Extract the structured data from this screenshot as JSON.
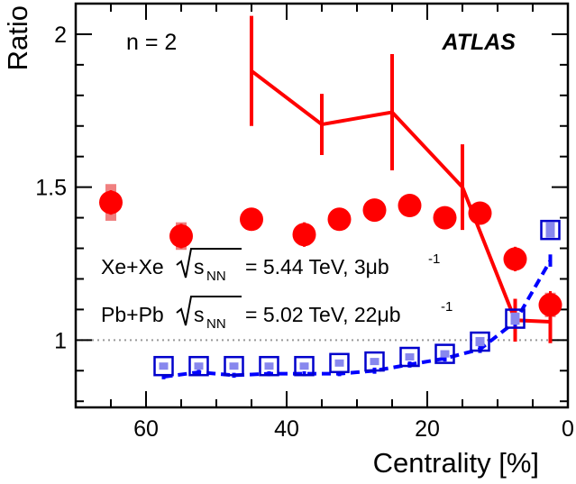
{
  "chart_data": {
    "type": "scatter",
    "title": "",
    "xlabel": "Centrality [%]",
    "ylabel": "Ratio",
    "xlim": [
      0,
      70
    ],
    "x_reversed": true,
    "ylim": [
      0.78,
      2.1
    ],
    "x_ticks": [
      60,
      40,
      20,
      0
    ],
    "y_ticks": [
      1,
      1.5,
      2
    ],
    "reference_line": 1,
    "annotations": {
      "n_label": "n = 2",
      "experiment": "ATLAS",
      "xexe_label": {
        "system": "Xe+Xe",
        "sqrt": "s",
        "sub": "NN",
        "rest": "= 5.44 TeV, 3μb",
        "sup": "-1"
      },
      "pbpb_label": {
        "system": "Pb+Pb",
        "sqrt": "s",
        "sub": "NN",
        "rest": "= 5.02 TeV, 22μb",
        "sup": "-1"
      }
    },
    "series": [
      {
        "name": "red-circles",
        "color": "#ff0000",
        "x": [
          65,
          55,
          45,
          37.5,
          32.5,
          27.5,
          22.5,
          17.5,
          12.5,
          7.5,
          2.5
        ],
        "y": [
          1.45,
          1.34,
          1.395,
          1.345,
          1.395,
          1.425,
          1.44,
          1.4,
          1.415,
          1.265,
          1.115
        ],
        "sys": [
          0.06,
          0.045,
          0.02,
          0.035,
          0.025,
          0.02,
          0.025,
          0.03,
          0.02,
          0.03,
          0.04
        ],
        "stat": [
          0.04,
          0.04,
          0.02,
          0.04,
          0.03,
          0.03,
          0.035,
          0.035,
          0.03,
          0.04,
          0.045
        ]
      },
      {
        "name": "red-line",
        "color": "#ff0000",
        "x": [
          45,
          35,
          25,
          15,
          7.5,
          2.5
        ],
        "y": [
          1.88,
          1.705,
          1.745,
          1.5,
          1.065,
          1.06
        ],
        "err": [
          0.18,
          0.1,
          0.19,
          0.14,
          0.07,
          0.07
        ]
      },
      {
        "name": "blue-squares",
        "color": "#0000cc",
        "x": [
          57.5,
          52.5,
          47.5,
          42.5,
          37.5,
          32.5,
          27.5,
          22.5,
          17.5,
          12.5,
          7.5,
          2.5
        ],
        "y": [
          0.915,
          0.915,
          0.915,
          0.915,
          0.915,
          0.925,
          0.93,
          0.945,
          0.955,
          0.995,
          1.07,
          1.36
        ],
        "sys": [
          0.008,
          0.008,
          0.008,
          0.008,
          0.008,
          0.01,
          0.01,
          0.01,
          0.012,
          0.015,
          0.02,
          0.025
        ]
      },
      {
        "name": "blue-dashed",
        "color": "#0000ff",
        "x": [
          57.5,
          52.5,
          47.5,
          42.5,
          37.5,
          32.5,
          27.5,
          22.5,
          17.5,
          12.5,
          7.5,
          2.5
        ],
        "y": [
          0.88,
          0.895,
          0.885,
          0.89,
          0.89,
          0.89,
          0.9,
          0.92,
          0.94,
          0.97,
          1.06,
          1.26
        ],
        "err": [
          0.008,
          0.008,
          0.008,
          0.008,
          0.008,
          0.008,
          0.01,
          0.01,
          0.01,
          0.012,
          0.015,
          0.02
        ]
      }
    ]
  }
}
